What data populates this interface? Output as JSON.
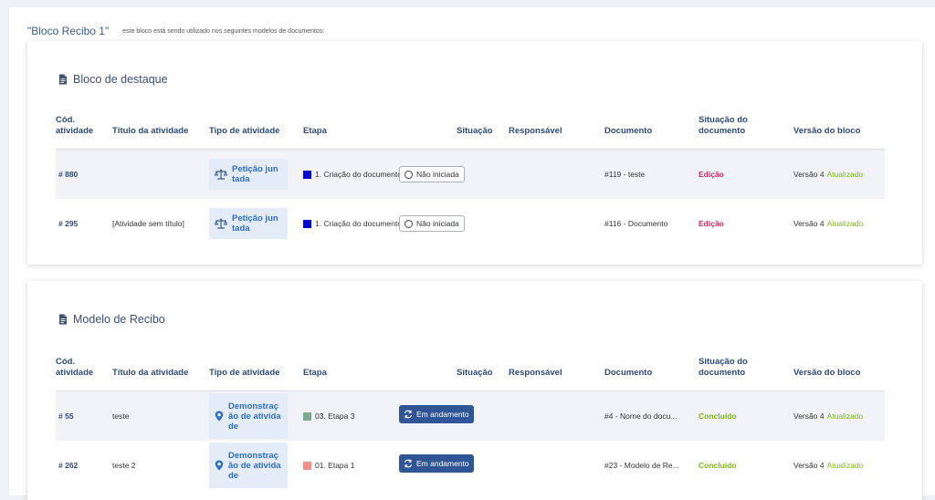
{
  "header": {
    "title": "\"Bloco Recibo 1\"",
    "subtitle": "este bloco está sendo utilizado nos seguintes modelos de documentos:"
  },
  "columns": {
    "cod": "Cód. atividade",
    "titulo": "Título da atividade",
    "tipo": "Tipo de atividade",
    "etapa": "Etapa",
    "situacao": "Situação",
    "responsavel": "Responsável",
    "documento": "Documento",
    "situacao_doc": "Situação do documento",
    "versao": "Versão do bloco"
  },
  "colors": {
    "edicao": "#e0245e",
    "concluido": "#7cb817",
    "atualizado": "#7cb817"
  },
  "cards": [
    {
      "title": "Bloco de destaque",
      "icon": "document-icon",
      "rows": [
        {
          "code": "# 880",
          "titulo": "",
          "tipo": "Petição juntada",
          "tipo_icon": "scale-icon",
          "etapa": "1. Criação do documento",
          "etapa_color": "#0000cc",
          "situacao": "Não iniciada",
          "situacao_style": "outline",
          "responsavel": "",
          "documento": "#119 - teste",
          "situacao_doc": "Edição",
          "situacao_doc_color": "#e0245e",
          "versao": "Versão 4",
          "versao_status": "Atualizado"
        },
        {
          "code": "# 295",
          "titulo": "[Atividade sem título]",
          "tipo": "Petição juntada",
          "tipo_icon": "scale-icon",
          "etapa": "1. Criação do documento",
          "etapa_color": "#0000cc",
          "situacao": "Não iniciada",
          "situacao_style": "outline",
          "responsavel": "",
          "documento": "#116 - Documento",
          "situacao_doc": "Edição",
          "situacao_doc_color": "#e0245e",
          "versao": "Versão 4",
          "versao_status": "Atualizado"
        }
      ]
    },
    {
      "title": "Modelo de Recibo",
      "icon": "document-icon",
      "rows": [
        {
          "code": "# 55",
          "titulo": "teste",
          "tipo": "Demonstração de atividade",
          "tipo_icon": "location-icon",
          "etapa": "03. Etapa 3",
          "etapa_color": "#7fa88e",
          "situacao": "Em andamento",
          "situacao_style": "solid",
          "responsavel": "",
          "documento": "#4 - Nome do docu...",
          "situacao_doc": "Concluído",
          "situacao_doc_color": "#7cb817",
          "versao": "Versão 4",
          "versao_status": "Atualizado"
        },
        {
          "code": "# 262",
          "titulo": "teste 2",
          "tipo": "Demonstração de atividade",
          "tipo_icon": "location-icon",
          "etapa": "01. Etapa 1",
          "etapa_color": "#ee8f8a",
          "situacao": "Em andamento",
          "situacao_style": "solid",
          "responsavel": "",
          "documento": "#23 - Modelo de Re...",
          "situacao_doc": "Concluído",
          "situacao_doc_color": "#7cb817",
          "versao": "Versão 4",
          "versao_status": "Atualizado"
        }
      ]
    }
  ]
}
